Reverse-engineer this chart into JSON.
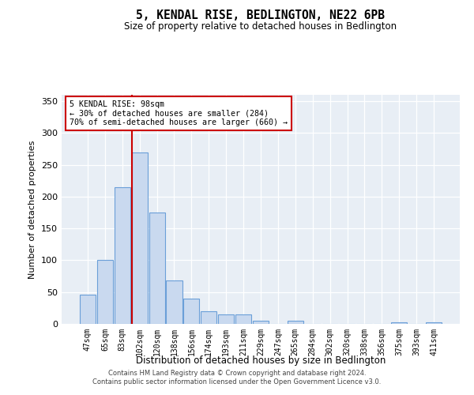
{
  "title": "5, KENDAL RISE, BEDLINGTON, NE22 6PB",
  "subtitle": "Size of property relative to detached houses in Bedlington",
  "xlabel": "Distribution of detached houses by size in Bedlington",
  "ylabel": "Number of detached properties",
  "categories": [
    "47sqm",
    "65sqm",
    "83sqm",
    "102sqm",
    "120sqm",
    "138sqm",
    "156sqm",
    "174sqm",
    "193sqm",
    "211sqm",
    "229sqm",
    "247sqm",
    "265sqm",
    "284sqm",
    "302sqm",
    "320sqm",
    "338sqm",
    "356sqm",
    "375sqm",
    "393sqm",
    "411sqm"
  ],
  "values": [
    46,
    101,
    215,
    270,
    175,
    68,
    40,
    20,
    15,
    15,
    5,
    0,
    5,
    0,
    0,
    0,
    0,
    0,
    3,
    0,
    2
  ],
  "bar_color": "#c9d9ef",
  "bar_edge_color": "#6a9fd8",
  "vline_index": 3,
  "annotation_text1": "5 KENDAL RISE: 98sqm",
  "annotation_text2": "← 30% of detached houses are smaller (284)",
  "annotation_text3": "70% of semi-detached houses are larger (660) →",
  "vline_color": "#cc0000",
  "annotation_box_color": "#ffffff",
  "annotation_box_edge": "#cc0000",
  "bg_color": "#e8eef5",
  "ylim": [
    0,
    360
  ],
  "yticks": [
    0,
    50,
    100,
    150,
    200,
    250,
    300,
    350
  ],
  "footer1": "Contains HM Land Registry data © Crown copyright and database right 2024.",
  "footer2": "Contains public sector information licensed under the Open Government Licence v3.0."
}
